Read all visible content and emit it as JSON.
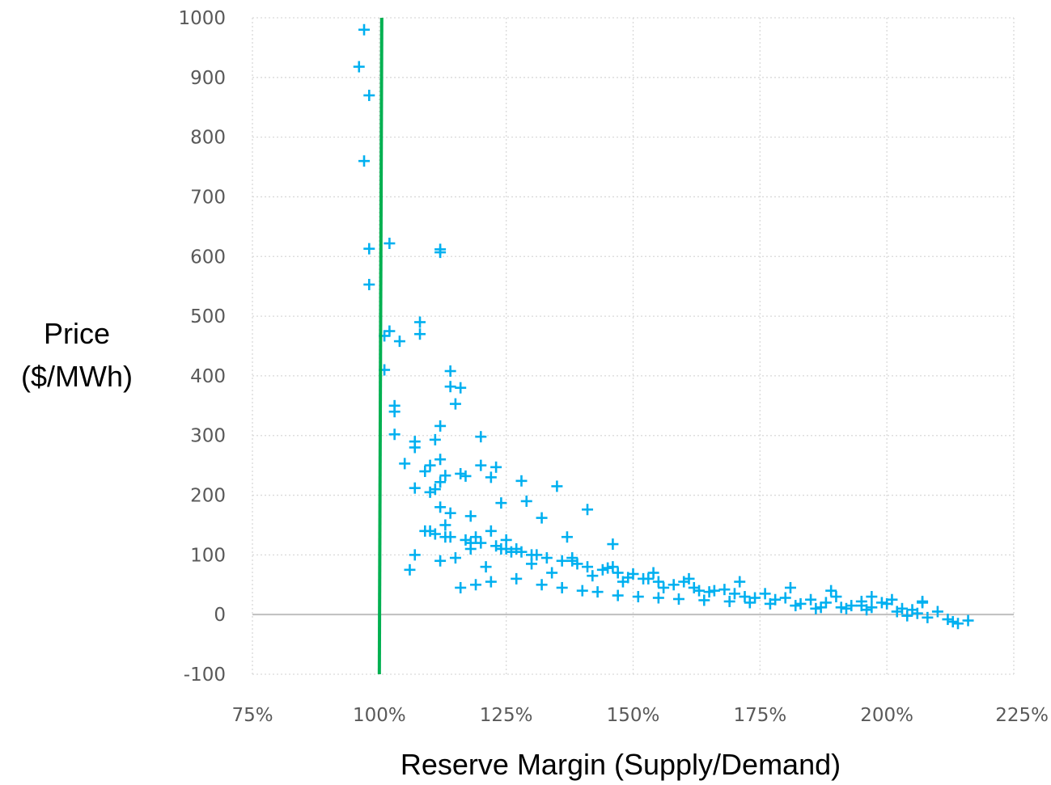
{
  "chart_data": {
    "type": "scatter",
    "title": "",
    "xlabel": "Reserve Margin (Supply/Demand)",
    "ylabel_lines": [
      "Price",
      "($/MWh)"
    ],
    "xlim": [
      0.75,
      2.25
    ],
    "ylim": [
      -100,
      1000
    ],
    "x_ticks": [
      0.75,
      1.0,
      1.25,
      1.5,
      1.75,
      2.0,
      2.25
    ],
    "x_tick_labels": [
      "75%",
      "100%",
      "125%",
      "150%",
      "175%",
      "200%",
      "225%"
    ],
    "y_ticks": [
      -100,
      0,
      100,
      200,
      300,
      400,
      500,
      600,
      700,
      800,
      900,
      1000
    ],
    "y_tick_labels": [
      "-100",
      "0",
      "100",
      "200",
      "300",
      "400",
      "500",
      "600",
      "700",
      "800",
      "900",
      "1000"
    ],
    "grid": "dotted",
    "marker": "plus",
    "reference_line": {
      "x": 1.0,
      "color": "#00b050"
    },
    "series": [
      {
        "color": "#00b0f0",
        "x": [
          0.97,
          0.96,
          0.98,
          0.97,
          0.98,
          1.02,
          0.98,
          1.12,
          1.12,
          1.01,
          1.08,
          1.08,
          1.02,
          1.04,
          1.01,
          1.14,
          1.14,
          1.16,
          1.15,
          1.03,
          1.03,
          1.12,
          1.11,
          1.03,
          1.2,
          1.07,
          1.07,
          1.05,
          1.12,
          1.1,
          1.2,
          1.23,
          1.09,
          1.16,
          1.13,
          1.17,
          1.22,
          1.28,
          1.12,
          1.07,
          1.11,
          1.35,
          1.24,
          1.1,
          1.29,
          1.41,
          1.12,
          1.14,
          1.18,
          1.32,
          1.13,
          1.22,
          1.19,
          1.25,
          1.27,
          1.37,
          1.46,
          1.06,
          1.07,
          1.12,
          1.15,
          1.18,
          1.21,
          1.26,
          1.3,
          1.34,
          1.38,
          1.42,
          1.45,
          1.48,
          1.5,
          1.53,
          1.56,
          1.6,
          1.63,
          1.65,
          1.68,
          1.72,
          1.76,
          1.8,
          1.85,
          1.88,
          1.9,
          1.93,
          1.95,
          1.97,
          2.0,
          2.01,
          2.03,
          2.05,
          2.07,
          2.1,
          2.13,
          2.14,
          2.16,
          2.12,
          2.08,
          2.04,
          2.07,
          1.99,
          1.95,
          1.91,
          1.86,
          1.83,
          1.78,
          1.74,
          1.7,
          1.66,
          1.62,
          1.58,
          1.55,
          1.52,
          1.49,
          1.47,
          1.44,
          1.41,
          1.39,
          1.36,
          1.33,
          1.31,
          1.28,
          1.25,
          1.23,
          1.2,
          1.17,
          1.14,
          1.11,
          1.09,
          1.16,
          1.19,
          1.22,
          1.27,
          1.32,
          1.36,
          1.4,
          1.43,
          1.47,
          1.51,
          1.55,
          1.59,
          1.64,
          1.69,
          1.73,
          1.77,
          1.82,
          1.87,
          1.92,
          1.96,
          2.02,
          2.06,
          1.97,
          1.89,
          1.81,
          1.71,
          1.61,
          1.54,
          1.46,
          1.38,
          1.3,
          1.24,
          1.18,
          1.13,
          1.1
        ],
        "y": [
          980,
          918,
          870,
          760,
          613,
          622,
          553,
          612,
          607,
          467,
          490,
          470,
          475,
          458,
          410,
          408,
          382,
          380,
          353,
          350,
          340,
          316,
          293,
          302,
          298,
          290,
          280,
          253,
          260,
          250,
          250,
          247,
          240,
          236,
          233,
          232,
          230,
          224,
          222,
          212,
          210,
          215,
          187,
          205,
          190,
          176,
          180,
          170,
          165,
          162,
          150,
          140,
          130,
          125,
          110,
          130,
          118,
          75,
          100,
          90,
          95,
          110,
          80,
          105,
          85,
          70,
          95,
          65,
          78,
          55,
          68,
          60,
          45,
          55,
          40,
          38,
          42,
          30,
          35,
          28,
          25,
          20,
          30,
          15,
          22,
          12,
          18,
          25,
          10,
          8,
          20,
          5,
          -12,
          -15,
          -10,
          -8,
          -5,
          -2,
          22,
          20,
          15,
          12,
          10,
          18,
          25,
          28,
          35,
          40,
          45,
          50,
          55,
          60,
          62,
          70,
          75,
          80,
          85,
          90,
          95,
          100,
          105,
          110,
          115,
          120,
          125,
          130,
          135,
          140,
          45,
          50,
          55,
          60,
          50,
          45,
          40,
          38,
          32,
          30,
          28,
          26,
          24,
          22,
          20,
          18,
          15,
          12,
          10,
          8,
          5,
          2,
          30,
          40,
          45,
          55,
          60,
          70,
          80,
          90,
          100,
          110,
          120,
          130,
          140
        ]
      }
    ]
  }
}
